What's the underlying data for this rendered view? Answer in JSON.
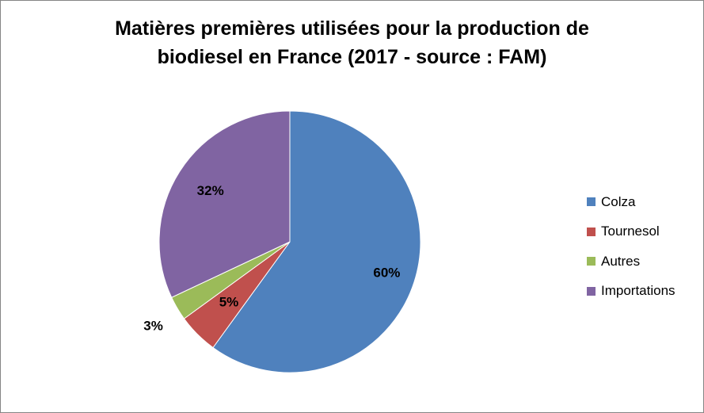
{
  "chart_data": {
    "type": "pie",
    "title_lines": [
      "Matières premières utilisées pour la production de",
      "biodiesel en France (2017 - source : FAM)"
    ],
    "slices": [
      {
        "label": "Colza",
        "value": 60,
        "data_label": "60%",
        "color": "#4F81BD"
      },
      {
        "label": "Tournesol",
        "value": 5,
        "data_label": "5%",
        "color": "#C0504D"
      },
      {
        "label": "Autres",
        "value": 3,
        "data_label": "3%",
        "color": "#9BBB59"
      },
      {
        "label": "Importations",
        "value": 32,
        "data_label": "32%",
        "color": "#8064A2"
      }
    ],
    "legend_position": "right"
  }
}
